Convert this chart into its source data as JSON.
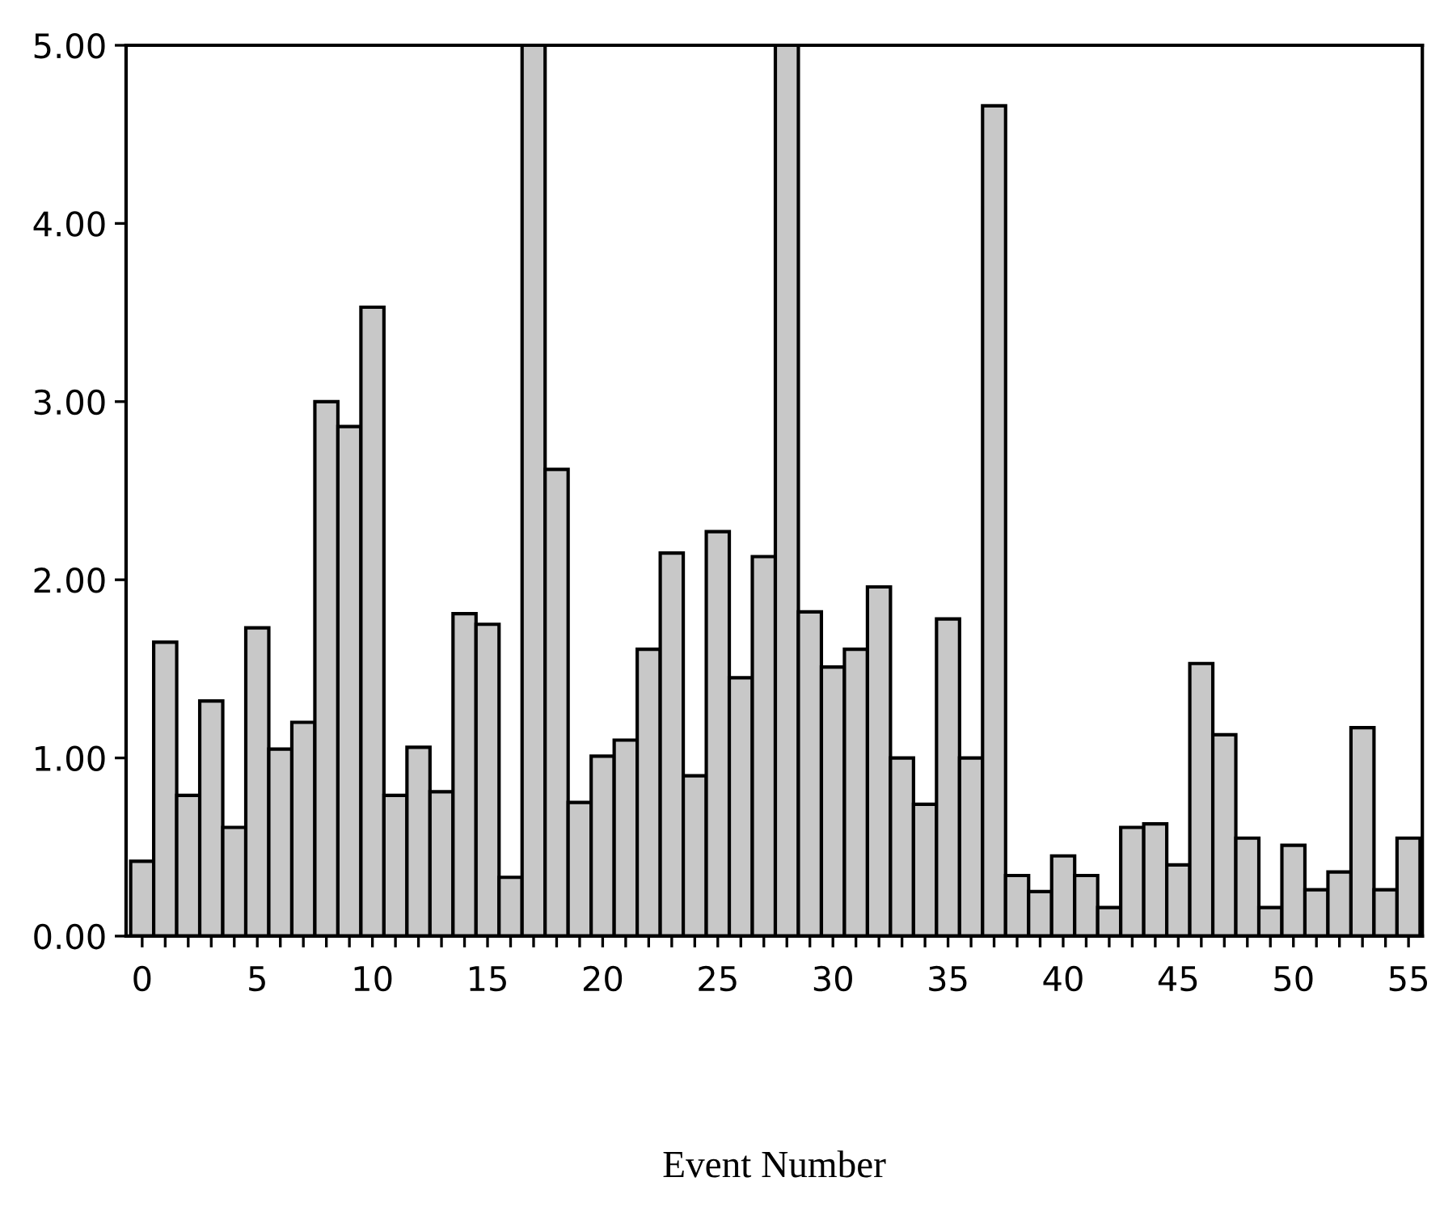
{
  "chart_data": {
    "type": "bar",
    "xlabel": "Event Number",
    "x": [
      0,
      1,
      2,
      3,
      4,
      5,
      6,
      7,
      8,
      9,
      10,
      11,
      12,
      13,
      14,
      15,
      16,
      17,
      18,
      19,
      20,
      21,
      22,
      23,
      24,
      25,
      26,
      27,
      28,
      29,
      30,
      31,
      32,
      33,
      34,
      35,
      36,
      37,
      38,
      39,
      40,
      41,
      42,
      43,
      44,
      45,
      46,
      47,
      48,
      49,
      50,
      51,
      52,
      53,
      54,
      55
    ],
    "values": [
      0.42,
      1.65,
      0.79,
      1.32,
      0.61,
      1.73,
      1.05,
      1.2,
      3.0,
      2.86,
      3.53,
      0.79,
      1.06,
      0.81,
      1.81,
      1.75,
      0.33,
      5.0,
      2.62,
      0.75,
      1.01,
      1.1,
      1.61,
      2.15,
      0.9,
      2.27,
      1.45,
      2.13,
      5.0,
      1.82,
      1.51,
      1.61,
      1.96,
      1.0,
      0.74,
      1.78,
      1.0,
      4.66,
      0.34,
      0.25,
      0.45,
      0.34,
      0.16,
      0.61,
      0.63,
      0.4,
      1.53,
      1.13,
      0.55,
      0.16,
      0.51,
      0.26,
      0.36,
      1.17,
      0.26,
      0.55
    ],
    "color": "#c8c8c8",
    "xlim": [
      -0.7,
      55.6
    ],
    "xticks": [
      0,
      {
        "value": 1,
        "label": null
      },
      {
        "value": 2,
        "label": null
      },
      {
        "value": 3,
        "label": null
      },
      {
        "value": 4,
        "label": null
      },
      5,
      {
        "value": 6,
        "label": null
      },
      {
        "value": 7,
        "label": null
      },
      {
        "value": 8,
        "label": null
      },
      {
        "value": 9,
        "label": null
      },
      10,
      {
        "value": 11,
        "label": null
      },
      {
        "value": 12,
        "label": null
      },
      {
        "value": 13,
        "label": null
      },
      {
        "value": 14,
        "label": null
      },
      15,
      {
        "value": 16,
        "label": null
      },
      {
        "value": 17,
        "label": null
      },
      {
        "value": 18,
        "label": null
      },
      {
        "value": 19,
        "label": null
      },
      20,
      {
        "value": 21,
        "label": null
      },
      {
        "value": 22,
        "label": null
      },
      {
        "value": 23,
        "label": null
      },
      {
        "value": 24,
        "label": null
      },
      25,
      {
        "value": 26,
        "label": null
      },
      {
        "value": 27,
        "label": null
      },
      {
        "value": 28,
        "label": null
      },
      {
        "value": 29,
        "label": null
      },
      30,
      {
        "value": 31,
        "label": null
      },
      {
        "value": 32,
        "label": null
      },
      {
        "value": 33,
        "label": null
      },
      {
        "value": 34,
        "label": null
      },
      35,
      {
        "value": 36,
        "label": null
      },
      {
        "value": 37,
        "label": null
      },
      {
        "value": 38,
        "label": null
      },
      {
        "value": 39,
        "label": null
      },
      40,
      {
        "value": 41,
        "label": null
      },
      {
        "value": 42,
        "label": null
      },
      {
        "value": 43,
        "label": null
      },
      {
        "value": 44,
        "label": null
      },
      45,
      {
        "value": 46,
        "label": null
      },
      {
        "value": 47,
        "label": null
      },
      {
        "value": 48,
        "label": null
      },
      {
        "value": 49,
        "label": null
      },
      50,
      {
        "value": 51,
        "label": null
      },
      {
        "value": 52,
        "label": null
      },
      {
        "value": 53,
        "label": null
      },
      {
        "value": 54,
        "label": null
      },
      55
    ],
    "ylim": [
      0,
      5
    ],
    "yticks": [
      {
        "value": 0,
        "label": "0.00"
      },
      {
        "value": 1,
        "label": "1.00"
      },
      {
        "value": 2,
        "label": "2.00"
      },
      {
        "value": 3,
        "label": "3.00"
      },
      {
        "value": 4,
        "label": "4.00"
      },
      {
        "value": 5,
        "label": "5.00"
      }
    ],
    "grid": false
  }
}
